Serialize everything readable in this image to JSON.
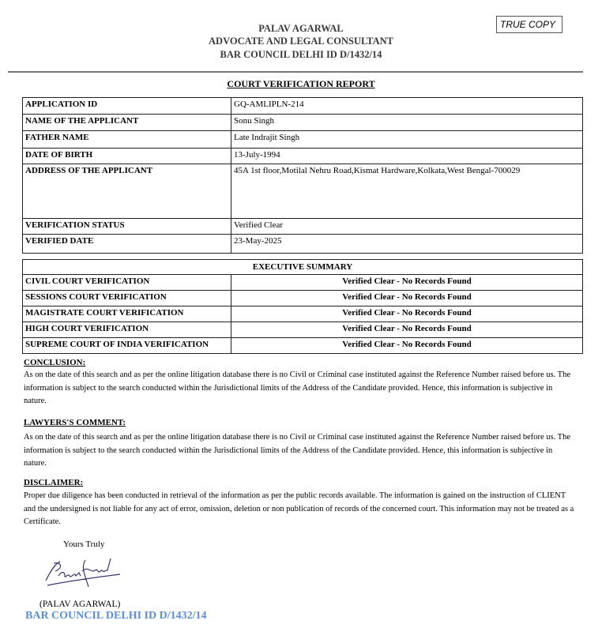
{
  "header": {
    "name": "PALAV AGARWAL",
    "role": "ADVOCATE AND LEGAL CONSULTANT",
    "bar_id": "BAR COUNCIL DELHI ID D/1432/14",
    "stamp": "TRUE COPY"
  },
  "title": "COURT VERIFICATION REPORT",
  "details": [
    {
      "label": "APPLICATION ID",
      "value": "GQ-AMLIPLN-214"
    },
    {
      "label": "NAME OF THE APPLICANT",
      "value": "Sonu Singh"
    },
    {
      "label": "FATHER NAME",
      "value": "Late Indrajit Singh"
    },
    {
      "label": "DATE OF BIRTH",
      "value": "13-July-1994"
    },
    {
      "label": "ADDRESS OF THE APPLICANT",
      "value": "45A 1st floor,Motilal Nehru Road,Kismat Hardware,Kolkata,West Bengal-700029"
    },
    {
      "label": "VERIFICATION STATUS",
      "value": "Verified Clear"
    },
    {
      "label": "VERIFIED DATE",
      "value": "23-May-2025"
    }
  ],
  "summary": {
    "heading": "EXECUTIVE SUMMARY",
    "rows": [
      {
        "label": "CIVIL COURT VERIFICATION",
        "value": "Verified Clear - No Records Found"
      },
      {
        "label": "SESSIONS COURT VERIFICATION",
        "value": "Verified Clear - No Records Found"
      },
      {
        "label": "MAGISTRATE COURT VERIFICATION",
        "value": "Verified Clear - No Records Found"
      },
      {
        "label": "HIGH COURT VERIFICATION",
        "value": "Verified Clear - No Records Found"
      },
      {
        "label": "SUPREME COURT OF INDIA VERIFICATION",
        "value": "Verified Clear - No Records Found"
      }
    ]
  },
  "conclusion": {
    "heading": "CONCLUSION:",
    "text": "As on the date of this search and as per the online litigation database there is no Civil or Criminal case instituted against the Reference Number raised before us. The information is subject to the search conducted within the Jurisdictional limits of the Address of the Candidate provided. Hence, this information is subjective in nature."
  },
  "comment": {
    "heading": "LAWYERS'S COMMENT:",
    "text": "As on the date of this search and as per the online litigation database there is no Civil or Criminal case instituted against the Reference Number raised before us. The information is subject to the search conducted within the Jurisdictional limits of the Address of the Candidate provided. Hence, this information is subjective in nature."
  },
  "disclaimer": {
    "heading": "DISCLAIMER:",
    "text": "Proper due diligence has been conducted in retrieval of the information as per the public records available. The information is gained on the instruction of CLIENT and the undersigned is not liable for any act of error, omission, deletion or non publication of records of the concerned court. This information may not be treated as a Certificate."
  },
  "signoff": {
    "closing": "Yours Truly",
    "signature": "Palav Agarwal",
    "name": "(PALAV AGARWAL)",
    "bar_id": "BAR COUNCIL DELHI ID D/1432/14",
    "bar_id_color": "#5b8fd6"
  }
}
